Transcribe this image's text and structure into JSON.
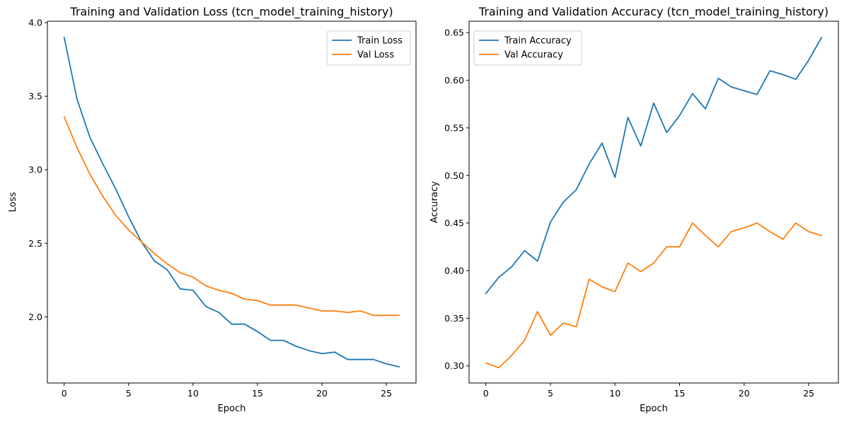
{
  "chart_data": [
    {
      "type": "line",
      "title": "Training and Validation Loss (tcn_model_training_history)",
      "xlabel": "Epoch",
      "ylabel": "Loss",
      "xlim": [
        -1.3,
        27.3
      ],
      "ylim": [
        1.55,
        4.01
      ],
      "xticks": [
        0,
        5,
        10,
        15,
        20,
        25
      ],
      "yticks": [
        2.0,
        2.5,
        3.0,
        3.5,
        4.0
      ],
      "ytick_decimals": 1,
      "grid": false,
      "legend": "top-right",
      "x": [
        0,
        1,
        2,
        3,
        4,
        5,
        6,
        7,
        8,
        9,
        10,
        11,
        12,
        13,
        14,
        15,
        16,
        17,
        18,
        19,
        20,
        21,
        22,
        23,
        24,
        25,
        26
      ],
      "series": [
        {
          "name": "Train Loss",
          "color": "#1f77b4",
          "values": [
            3.9,
            3.48,
            3.22,
            3.04,
            2.87,
            2.68,
            2.51,
            2.38,
            2.32,
            2.19,
            2.18,
            2.07,
            2.03,
            1.95,
            1.95,
            1.9,
            1.84,
            1.84,
            1.8,
            1.77,
            1.75,
            1.76,
            1.71,
            1.71,
            1.71,
            1.68,
            1.66
          ]
        },
        {
          "name": "Val Loss",
          "color": "#ff7f0e",
          "values": [
            3.36,
            3.15,
            2.97,
            2.82,
            2.69,
            2.59,
            2.51,
            2.43,
            2.36,
            2.3,
            2.27,
            2.21,
            2.18,
            2.16,
            2.12,
            2.11,
            2.08,
            2.08,
            2.08,
            2.06,
            2.04,
            2.04,
            2.03,
            2.04,
            2.01,
            2.01,
            2.01
          ]
        }
      ]
    },
    {
      "type": "line",
      "title": "Training and Validation Accuracy (tcn_model_training_history)",
      "xlabel": "Epoch",
      "ylabel": "Accuracy",
      "xlim": [
        -1.3,
        27.3
      ],
      "ylim": [
        0.282,
        0.662
      ],
      "xticks": [
        0,
        5,
        10,
        15,
        20,
        25
      ],
      "yticks": [
        0.3,
        0.35,
        0.4,
        0.45,
        0.5,
        0.55,
        0.6,
        0.65
      ],
      "ytick_decimals": 2,
      "grid": false,
      "legend": "top-left",
      "x": [
        0,
        1,
        2,
        3,
        4,
        5,
        6,
        7,
        8,
        9,
        10,
        11,
        12,
        13,
        14,
        15,
        16,
        17,
        18,
        19,
        20,
        21,
        22,
        23,
        24,
        25,
        26
      ],
      "series": [
        {
          "name": "Train Accuracy",
          "color": "#1f77b4",
          "values": [
            0.376,
            0.393,
            0.404,
            0.421,
            0.41,
            0.451,
            0.472,
            0.485,
            0.512,
            0.534,
            0.498,
            0.561,
            0.531,
            0.576,
            0.545,
            0.563,
            0.586,
            0.57,
            0.602,
            0.593,
            0.589,
            0.585,
            0.61,
            0.606,
            0.601,
            0.621,
            0.645
          ]
        },
        {
          "name": "Val Accuracy",
          "color": "#ff7f0e",
          "values": [
            0.303,
            0.298,
            0.311,
            0.327,
            0.357,
            0.332,
            0.345,
            0.341,
            0.391,
            0.383,
            0.378,
            0.408,
            0.399,
            0.408,
            0.425,
            0.425,
            0.45,
            0.437,
            0.425,
            0.441,
            0.445,
            0.45,
            0.441,
            0.433,
            0.45,
            0.441,
            0.437
          ]
        }
      ]
    }
  ]
}
